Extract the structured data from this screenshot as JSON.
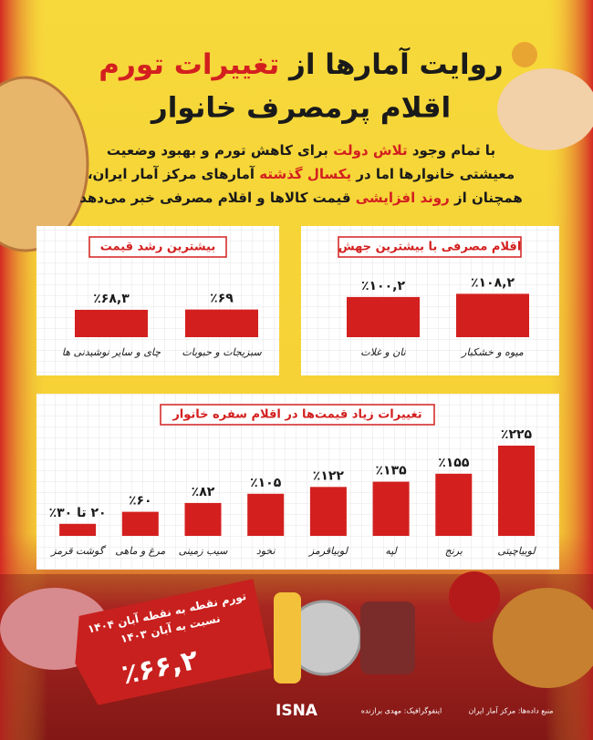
{
  "title": {
    "line1": [
      "روایت آمارها از ",
      "تغییرات تورم"
    ],
    "line2": "اقلام پرمصرف خانوار"
  },
  "body": [
    [
      "با تمام وجود ",
      "تلاش دولت",
      " برای کاهش تورم و بهبود وضعیت"
    ],
    [
      "معیشتی خانوارها اما در ",
      "یکسال گذشته",
      " آمارهای مرکز آمار ایران،"
    ],
    [
      "همچنان از ",
      "روند افزایشی",
      " قیمت کالاها و اقلام مصرفی خبر می‌دهد"
    ]
  ],
  "chart_data": [
    {
      "type": "bar",
      "title": "اقلام مصرفی با بیشترین جهش",
      "categories": [
        "میوه و خشکبار",
        "نان و غلات"
      ],
      "values": [
        108.2,
        100.2
      ],
      "value_labels": [
        "٪۱۰۸,۲",
        "٪۱۰۰,۲"
      ],
      "color": "#d3201f",
      "ylim": [
        0,
        250
      ]
    },
    {
      "type": "bar",
      "title": "بیشترین رشد قیمت",
      "categories": [
        "سبزیجات و حبوبات",
        "چای و سایر نوشیدنی ها"
      ],
      "values": [
        69,
        68.3
      ],
      "value_labels": [
        "٪۶۹",
        "٪۶۸,۳"
      ],
      "color": "#d3201f",
      "ylim": [
        0,
        250
      ]
    },
    {
      "type": "bar",
      "title": "تغییرات زیاد قیمت‌ها در اقلام سفره خانوار",
      "categories": [
        "لوبیاچیتی",
        "برنج",
        "لپه",
        "لوبیاقرمز",
        "نخود",
        "سیب زمینی",
        "مرغ و ماهی",
        "گوشت قرمز"
      ],
      "values": [
        225,
        155,
        135,
        122,
        105,
        82,
        60,
        30
      ],
      "value_labels": [
        "٪۲۲۵",
        "٪۱۵۵",
        "٪۱۳۵",
        "٪۱۲۲",
        "٪۱۰۵",
        "٪۸۲",
        "٪۶۰",
        "۲۰ تا ۳۰٪"
      ],
      "color": "#d3201f",
      "ylim": [
        0,
        250
      ]
    }
  ],
  "badge": {
    "line1": "تورم نقطه به نقطه آبان ۱۴۰۴",
    "line2": "نسبت به آبان ۱۴۰۳",
    "value": "٪۶۶,۲"
  },
  "footer": {
    "source": "منبع داده‌ها: مرکز آمار ایران",
    "designer": "اینفوگرافیک: مهدی برازنده",
    "logo": "ISNA"
  }
}
